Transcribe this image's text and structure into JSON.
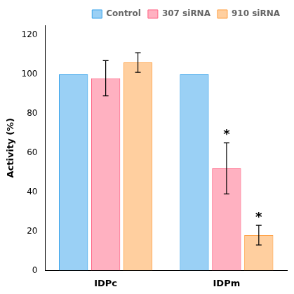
{
  "chart_data": {
    "type": "bar",
    "ylabel": "Activity (%)",
    "categories": [
      "IDPc",
      "IDPm"
    ],
    "series": [
      {
        "name": "Control",
        "values": [
          100,
          100
        ],
        "errors": [
          0,
          0
        ]
      },
      {
        "name": "307 siRNA",
        "values": [
          98,
          52
        ],
        "errors": [
          9,
          13
        ]
      },
      {
        "name": "910 siRNA",
        "values": [
          106,
          18
        ],
        "errors": [
          5,
          5
        ]
      }
    ],
    "annotations": [
      {
        "text": "*",
        "category": "IDPm",
        "series": "307 siRNA"
      },
      {
        "text": "*",
        "category": "IDPm",
        "series": "910 siRNA"
      }
    ],
    "ylim": [
      0,
      125
    ],
    "yticks": [
      0,
      20,
      40,
      60,
      80,
      100,
      120
    ],
    "grid": false,
    "legend": "upper right"
  }
}
